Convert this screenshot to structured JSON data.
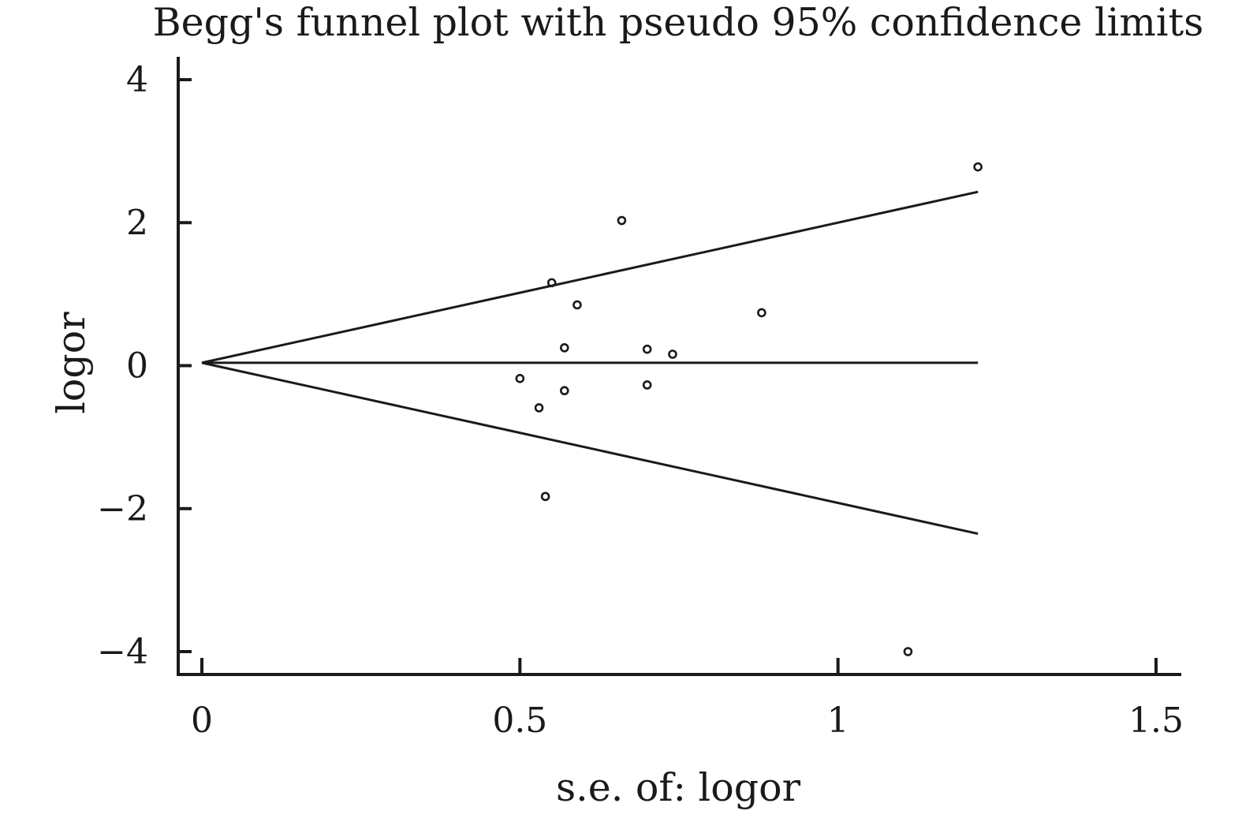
{
  "chart_data": {
    "type": "scatter",
    "title": "Begg's funnel plot with pseudo 95% confidence limits",
    "xlabel": "s.e. of: logor",
    "ylabel": "logor",
    "xlim": [
      0,
      1.5
    ],
    "ylim": [
      -4,
      4
    ],
    "x_ticks": [
      {
        "value": 0,
        "label": "0"
      },
      {
        "value": 0.5,
        "label": "0.5"
      },
      {
        "value": 1,
        "label": "1"
      },
      {
        "value": 1.5,
        "label": "1.5"
      }
    ],
    "y_ticks": [
      {
        "value": 4,
        "label": "4"
      },
      {
        "value": 2,
        "label": "2"
      },
      {
        "value": 0,
        "label": "0"
      },
      {
        "value": -2,
        "label": "−2"
      },
      {
        "value": -4,
        "label": "−4"
      }
    ],
    "pooled_estimate": 0.04,
    "funnel_max_se": 1.22,
    "points": [
      {
        "x": 1.22,
        "y": 2.78
      },
      {
        "x": 0.66,
        "y": 2.03
      },
      {
        "x": 0.55,
        "y": 1.16
      },
      {
        "x": 0.59,
        "y": 0.85
      },
      {
        "x": 0.88,
        "y": 0.74
      },
      {
        "x": 0.57,
        "y": 0.25
      },
      {
        "x": 0.7,
        "y": 0.23
      },
      {
        "x": 0.74,
        "y": 0.16
      },
      {
        "x": 0.5,
        "y": -0.18
      },
      {
        "x": 0.7,
        "y": -0.27
      },
      {
        "x": 0.57,
        "y": -0.35
      },
      {
        "x": 0.53,
        "y": -0.59
      },
      {
        "x": 0.54,
        "y": -1.83
      },
      {
        "x": 1.11,
        "y": -4.0
      }
    ],
    "grid": false,
    "colors": {
      "ink": "#1a1a1a"
    }
  }
}
